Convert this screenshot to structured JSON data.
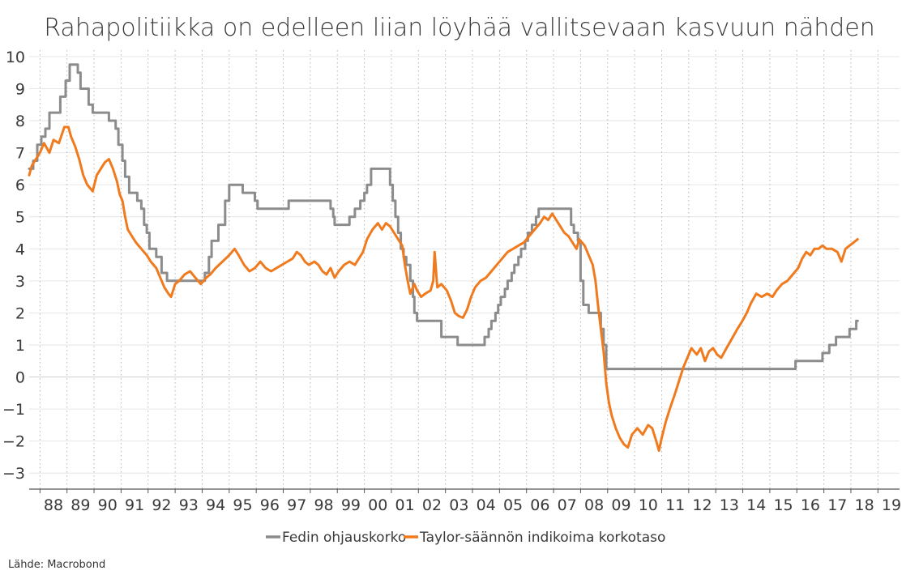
{
  "chart_data": {
    "type": "line",
    "title": "Rahapolitiikka on edelleen liian löyhää vallitsevaan kasvuun nähden",
    "source": "Lähde: Macrobond",
    "xlabel": "",
    "ylabel": "",
    "xlim": [
      1987.6,
      2019.8
    ],
    "ylim": [
      -3.5,
      10.2
    ],
    "yticks": [
      -3,
      -2,
      -1,
      0,
      1,
      2,
      3,
      4,
      5,
      6,
      7,
      8,
      9,
      10
    ],
    "ytick_labels": [
      "−3",
      "−2",
      "−1",
      "0",
      "1",
      "2",
      "3",
      "4",
      "5",
      "6",
      "7",
      "8",
      "9",
      "10"
    ],
    "xtick_labels": [
      "88",
      "89",
      "90",
      "91",
      "92",
      "93",
      "94",
      "95",
      "96",
      "97",
      "98",
      "99",
      "00",
      "01",
      "02",
      "03",
      "04",
      "05",
      "06",
      "07",
      "08",
      "09",
      "10",
      "11",
      "12",
      "13",
      "14",
      "15",
      "16",
      "17",
      "18",
      "19"
    ],
    "grid": true,
    "legend": "bottom-center",
    "series": [
      {
        "name": "Fedin ohjauskorko",
        "color": "#8c8c8c",
        "step": true,
        "points": [
          [
            1987.6,
            6.5
          ],
          [
            1987.75,
            6.75
          ],
          [
            1987.9,
            7.25
          ],
          [
            1988.05,
            7.5
          ],
          [
            1988.2,
            7.75
          ],
          [
            1988.35,
            8.25
          ],
          [
            1988.6,
            8.25
          ],
          [
            1988.75,
            8.75
          ],
          [
            1988.95,
            9.25
          ],
          [
            1989.1,
            9.75
          ],
          [
            1989.4,
            9.5
          ],
          [
            1989.5,
            9.0
          ],
          [
            1989.8,
            8.5
          ],
          [
            1989.95,
            8.25
          ],
          [
            1990.5,
            8.25
          ],
          [
            1990.55,
            8.0
          ],
          [
            1990.8,
            7.75
          ],
          [
            1990.9,
            7.25
          ],
          [
            1991.05,
            6.75
          ],
          [
            1991.15,
            6.25
          ],
          [
            1991.3,
            5.75
          ],
          [
            1991.6,
            5.5
          ],
          [
            1991.75,
            5.25
          ],
          [
            1991.85,
            4.75
          ],
          [
            1991.95,
            4.5
          ],
          [
            1992.05,
            4.0
          ],
          [
            1992.3,
            3.75
          ],
          [
            1992.5,
            3.25
          ],
          [
            1992.7,
            3.0
          ],
          [
            1993.0,
            3.0
          ],
          [
            1994.0,
            3.0
          ],
          [
            1994.1,
            3.25
          ],
          [
            1994.25,
            3.75
          ],
          [
            1994.35,
            4.25
          ],
          [
            1994.6,
            4.75
          ],
          [
            1994.85,
            5.5
          ],
          [
            1995.0,
            6.0
          ],
          [
            1995.5,
            5.75
          ],
          [
            1995.95,
            5.5
          ],
          [
            1996.05,
            5.25
          ],
          [
            1997.2,
            5.5
          ],
          [
            1998.75,
            5.25
          ],
          [
            1998.85,
            5.0
          ],
          [
            1998.9,
            4.75
          ],
          [
            1999.45,
            5.0
          ],
          [
            1999.65,
            5.25
          ],
          [
            1999.85,
            5.5
          ],
          [
            2000.0,
            5.75
          ],
          [
            2000.1,
            6.0
          ],
          [
            2000.25,
            6.5
          ],
          [
            2000.95,
            6.0
          ],
          [
            2001.05,
            5.5
          ],
          [
            2001.15,
            5.0
          ],
          [
            2001.25,
            4.5
          ],
          [
            2001.35,
            4.0
          ],
          [
            2001.45,
            3.75
          ],
          [
            2001.55,
            3.5
          ],
          [
            2001.7,
            3.0
          ],
          [
            2001.8,
            2.5
          ],
          [
            2001.85,
            2.0
          ],
          [
            2001.95,
            1.75
          ],
          [
            2002.85,
            1.25
          ],
          [
            2003.45,
            1.0
          ],
          [
            2004.45,
            1.25
          ],
          [
            2004.6,
            1.5
          ],
          [
            2004.7,
            1.75
          ],
          [
            2004.85,
            2.0
          ],
          [
            2004.95,
            2.25
          ],
          [
            2005.05,
            2.5
          ],
          [
            2005.2,
            2.75
          ],
          [
            2005.3,
            3.0
          ],
          [
            2005.45,
            3.25
          ],
          [
            2005.55,
            3.5
          ],
          [
            2005.7,
            3.75
          ],
          [
            2005.8,
            4.0
          ],
          [
            2005.95,
            4.25
          ],
          [
            2006.05,
            4.5
          ],
          [
            2006.2,
            4.75
          ],
          [
            2006.35,
            5.0
          ],
          [
            2006.45,
            5.25
          ],
          [
            2007.65,
            4.75
          ],
          [
            2007.75,
            4.5
          ],
          [
            2007.9,
            4.25
          ],
          [
            2008.0,
            3.0
          ],
          [
            2008.1,
            2.25
          ],
          [
            2008.3,
            2.0
          ],
          [
            2008.75,
            1.5
          ],
          [
            2008.85,
            1.0
          ],
          [
            2008.95,
            0.25
          ],
          [
            2015.95,
            0.5
          ],
          [
            2016.95,
            0.75
          ],
          [
            2017.2,
            1.0
          ],
          [
            2017.45,
            1.25
          ],
          [
            2017.95,
            1.5
          ],
          [
            2018.2,
            1.75
          ],
          [
            2018.25,
            1.75
          ]
        ]
      },
      {
        "name": "Taylor-säännön indikoima korkotaso",
        "color": "#f07a1e",
        "step": false,
        "points": [
          [
            1987.6,
            6.3
          ],
          [
            1987.7,
            6.6
          ],
          [
            1987.85,
            6.8
          ],
          [
            1988.0,
            7.0
          ],
          [
            1988.15,
            7.3
          ],
          [
            1988.35,
            7.0
          ],
          [
            1988.5,
            7.4
          ],
          [
            1988.7,
            7.3
          ],
          [
            1988.9,
            7.8
          ],
          [
            1989.05,
            7.8
          ],
          [
            1989.15,
            7.5
          ],
          [
            1989.3,
            7.2
          ],
          [
            1989.45,
            6.8
          ],
          [
            1989.6,
            6.3
          ],
          [
            1989.75,
            6.0
          ],
          [
            1989.95,
            5.8
          ],
          [
            1990.1,
            6.3
          ],
          [
            1990.25,
            6.5
          ],
          [
            1990.4,
            6.7
          ],
          [
            1990.55,
            6.8
          ],
          [
            1990.7,
            6.5
          ],
          [
            1990.85,
            6.1
          ],
          [
            1990.95,
            5.7
          ],
          [
            1991.05,
            5.5
          ],
          [
            1991.15,
            5.0
          ],
          [
            1991.25,
            4.6
          ],
          [
            1991.4,
            4.4
          ],
          [
            1991.55,
            4.2
          ],
          [
            1991.75,
            4.0
          ],
          [
            1991.95,
            3.8
          ],
          [
            1992.1,
            3.6
          ],
          [
            1992.3,
            3.4
          ],
          [
            1992.45,
            3.1
          ],
          [
            1992.6,
            2.8
          ],
          [
            1992.75,
            2.6
          ],
          [
            1992.85,
            2.5
          ],
          [
            1993.0,
            2.9
          ],
          [
            1993.15,
            3.0
          ],
          [
            1993.35,
            3.2
          ],
          [
            1993.55,
            3.3
          ],
          [
            1993.75,
            3.1
          ],
          [
            1993.95,
            2.9
          ],
          [
            1994.15,
            3.1
          ],
          [
            1994.3,
            3.2
          ],
          [
            1994.5,
            3.4
          ],
          [
            1994.75,
            3.6
          ],
          [
            1995.0,
            3.8
          ],
          [
            1995.2,
            4.0
          ],
          [
            1995.35,
            3.8
          ],
          [
            1995.55,
            3.5
          ],
          [
            1995.75,
            3.3
          ],
          [
            1995.95,
            3.4
          ],
          [
            1996.15,
            3.6
          ],
          [
            1996.35,
            3.4
          ],
          [
            1996.55,
            3.3
          ],
          [
            1996.75,
            3.4
          ],
          [
            1996.95,
            3.5
          ],
          [
            1997.15,
            3.6
          ],
          [
            1997.35,
            3.7
          ],
          [
            1997.5,
            3.9
          ],
          [
            1997.65,
            3.8
          ],
          [
            1997.8,
            3.6
          ],
          [
            1997.95,
            3.5
          ],
          [
            1998.15,
            3.6
          ],
          [
            1998.3,
            3.5
          ],
          [
            1998.45,
            3.3
          ],
          [
            1998.6,
            3.2
          ],
          [
            1998.75,
            3.4
          ],
          [
            1998.9,
            3.1
          ],
          [
            1999.05,
            3.3
          ],
          [
            1999.25,
            3.5
          ],
          [
            1999.45,
            3.6
          ],
          [
            1999.65,
            3.5
          ],
          [
            1999.8,
            3.7
          ],
          [
            1999.95,
            3.9
          ],
          [
            2000.1,
            4.3
          ],
          [
            2000.3,
            4.6
          ],
          [
            2000.5,
            4.8
          ],
          [
            2000.65,
            4.6
          ],
          [
            2000.8,
            4.8
          ],
          [
            2000.95,
            4.7
          ],
          [
            2001.1,
            4.5
          ],
          [
            2001.25,
            4.3
          ],
          [
            2001.4,
            4.1
          ],
          [
            2001.5,
            3.5
          ],
          [
            2001.6,
            3.0
          ],
          [
            2001.7,
            2.6
          ],
          [
            2001.85,
            2.9
          ],
          [
            2001.95,
            2.7
          ],
          [
            2002.1,
            2.5
          ],
          [
            2002.25,
            2.6
          ],
          [
            2002.45,
            2.7
          ],
          [
            2002.55,
            3.0
          ],
          [
            2002.6,
            3.9
          ],
          [
            2002.7,
            2.8
          ],
          [
            2002.85,
            2.9
          ],
          [
            2003.05,
            2.7
          ],
          [
            2003.2,
            2.4
          ],
          [
            2003.35,
            2.0
          ],
          [
            2003.5,
            1.9
          ],
          [
            2003.65,
            1.85
          ],
          [
            2003.8,
            2.1
          ],
          [
            2003.95,
            2.5
          ],
          [
            2004.1,
            2.8
          ],
          [
            2004.3,
            3.0
          ],
          [
            2004.5,
            3.1
          ],
          [
            2004.7,
            3.3
          ],
          [
            2004.9,
            3.5
          ],
          [
            2005.1,
            3.7
          ],
          [
            2005.3,
            3.9
          ],
          [
            2005.5,
            4.0
          ],
          [
            2005.7,
            4.1
          ],
          [
            2005.9,
            4.2
          ],
          [
            2006.1,
            4.4
          ],
          [
            2006.3,
            4.6
          ],
          [
            2006.5,
            4.8
          ],
          [
            2006.65,
            5.0
          ],
          [
            2006.8,
            4.9
          ],
          [
            2006.95,
            5.1
          ],
          [
            2007.1,
            4.9
          ],
          [
            2007.25,
            4.7
          ],
          [
            2007.4,
            4.5
          ],
          [
            2007.55,
            4.4
          ],
          [
            2007.7,
            4.2
          ],
          [
            2007.85,
            4.0
          ],
          [
            2007.95,
            4.3
          ],
          [
            2008.15,
            4.1
          ],
          [
            2008.3,
            3.8
          ],
          [
            2008.45,
            3.5
          ],
          [
            2008.55,
            3.0
          ],
          [
            2008.65,
            2.2
          ],
          [
            2008.75,
            1.5
          ],
          [
            2008.85,
            0.8
          ],
          [
            2008.95,
            -0.2
          ],
          [
            2009.05,
            -0.8
          ],
          [
            2009.15,
            -1.2
          ],
          [
            2009.3,
            -1.6
          ],
          [
            2009.45,
            -1.9
          ],
          [
            2009.6,
            -2.1
          ],
          [
            2009.75,
            -2.2
          ],
          [
            2009.9,
            -1.8
          ],
          [
            2010.1,
            -1.6
          ],
          [
            2010.3,
            -1.8
          ],
          [
            2010.5,
            -1.5
          ],
          [
            2010.65,
            -1.6
          ],
          [
            2010.8,
            -2.0
          ],
          [
            2010.9,
            -2.3
          ],
          [
            2011.0,
            -1.9
          ],
          [
            2011.15,
            -1.4
          ],
          [
            2011.3,
            -1.0
          ],
          [
            2011.5,
            -0.5
          ],
          [
            2011.65,
            -0.1
          ],
          [
            2011.8,
            0.3
          ],
          [
            2011.95,
            0.6
          ],
          [
            2012.1,
            0.9
          ],
          [
            2012.3,
            0.7
          ],
          [
            2012.45,
            0.9
          ],
          [
            2012.6,
            0.5
          ],
          [
            2012.75,
            0.8
          ],
          [
            2012.9,
            0.9
          ],
          [
            2013.05,
            0.7
          ],
          [
            2013.2,
            0.6
          ],
          [
            2013.4,
            0.9
          ],
          [
            2013.6,
            1.2
          ],
          [
            2013.8,
            1.5
          ],
          [
            2013.95,
            1.7
          ],
          [
            2014.15,
            2.0
          ],
          [
            2014.3,
            2.3
          ],
          [
            2014.5,
            2.6
          ],
          [
            2014.7,
            2.5
          ],
          [
            2014.9,
            2.6
          ],
          [
            2015.1,
            2.5
          ],
          [
            2015.25,
            2.7
          ],
          [
            2015.45,
            2.9
          ],
          [
            2015.65,
            3.0
          ],
          [
            2015.85,
            3.2
          ],
          [
            2016.05,
            3.4
          ],
          [
            2016.2,
            3.7
          ],
          [
            2016.35,
            3.9
          ],
          [
            2016.5,
            3.8
          ],
          [
            2016.65,
            4.0
          ],
          [
            2016.8,
            4.0
          ],
          [
            2016.95,
            4.1
          ],
          [
            2017.1,
            4.0
          ],
          [
            2017.3,
            4.0
          ],
          [
            2017.5,
            3.9
          ],
          [
            2017.65,
            3.6
          ],
          [
            2017.8,
            4.0
          ],
          [
            2017.95,
            4.1
          ],
          [
            2018.1,
            4.2
          ],
          [
            2018.25,
            4.3
          ]
        ]
      }
    ]
  }
}
